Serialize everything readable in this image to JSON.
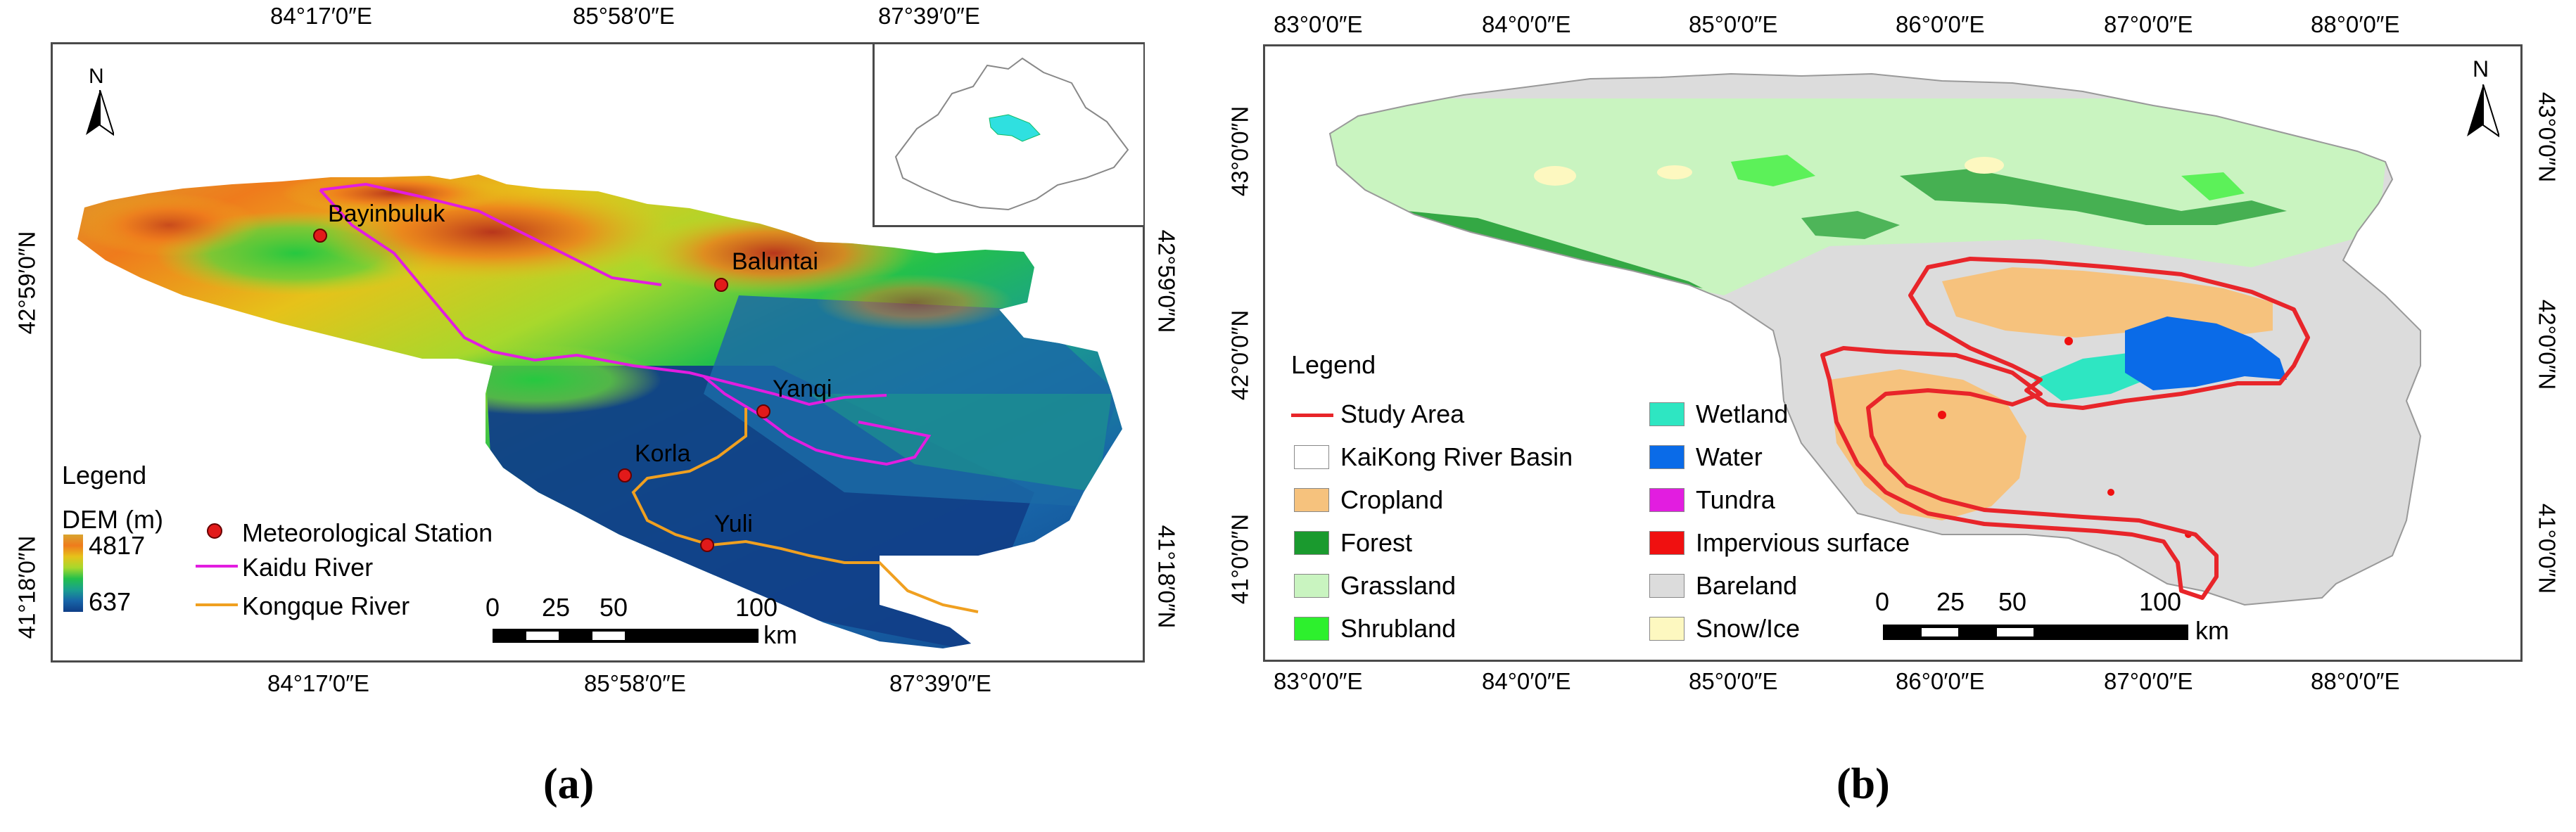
{
  "panel_a": {
    "label": "(a)",
    "x_ticks": [
      "84°17′0″E",
      "85°58′0″E",
      "87°39′0″E"
    ],
    "y_ticks": [
      "42°59′0″N",
      "41°18′0″N"
    ],
    "north": "N",
    "stations": [
      "Bayinbuluk",
      "Baluntai",
      "Yanqi",
      "Korla",
      "Yuli"
    ],
    "legend": {
      "title": "Legend",
      "dem_label": "DEM (m)",
      "dem_max": "4817",
      "dem_min": "637",
      "station_label": "Meteorological Station",
      "kaidu_label": "Kaidu River",
      "kongque_label": "Kongque River"
    },
    "scale": {
      "ticks": [
        "0",
        "25",
        "50",
        "100"
      ],
      "unit": "km"
    }
  },
  "panel_b": {
    "label": "(b)",
    "x_ticks": [
      "83°0′0″E",
      "84°0′0″E",
      "85°0′0″E",
      "86°0′0″E",
      "87°0′0″E",
      "88°0′0″E"
    ],
    "y_ticks": [
      "43°0′0″N",
      "42°0′0″N",
      "41°0′0″N"
    ],
    "north": "N",
    "legend": {
      "title": "Legend",
      "items_left": [
        {
          "label": "Study Area",
          "kind": "line",
          "color": "#e8252a"
        },
        {
          "label": "KaiKong River Basin",
          "kind": "box",
          "color": "#ffffff"
        },
        {
          "label": "Cropland",
          "kind": "box",
          "color": "#f6c27d"
        },
        {
          "label": "Forest",
          "kind": "box",
          "color": "#1a9a2e"
        },
        {
          "label": "Grassland",
          "kind": "box",
          "color": "#c9f4c0"
        },
        {
          "label": "Shrubland",
          "kind": "box",
          "color": "#2df02d"
        }
      ],
      "items_right": [
        {
          "label": "Wetland",
          "kind": "box",
          "color": "#2ee6c2"
        },
        {
          "label": "Water",
          "kind": "box",
          "color": "#0a6be8"
        },
        {
          "label": "Tundra",
          "kind": "box",
          "color": "#e21de0"
        },
        {
          "label": "Impervious surface",
          "kind": "box",
          "color": "#f01010"
        },
        {
          "label": "Bareland",
          "kind": "box",
          "color": "#dcdcdc"
        },
        {
          "label": "Snow/Ice",
          "kind": "box",
          "color": "#fdf8c0"
        }
      ]
    },
    "scale": {
      "ticks": [
        "0",
        "25",
        "50",
        "100"
      ],
      "unit": "km"
    }
  }
}
